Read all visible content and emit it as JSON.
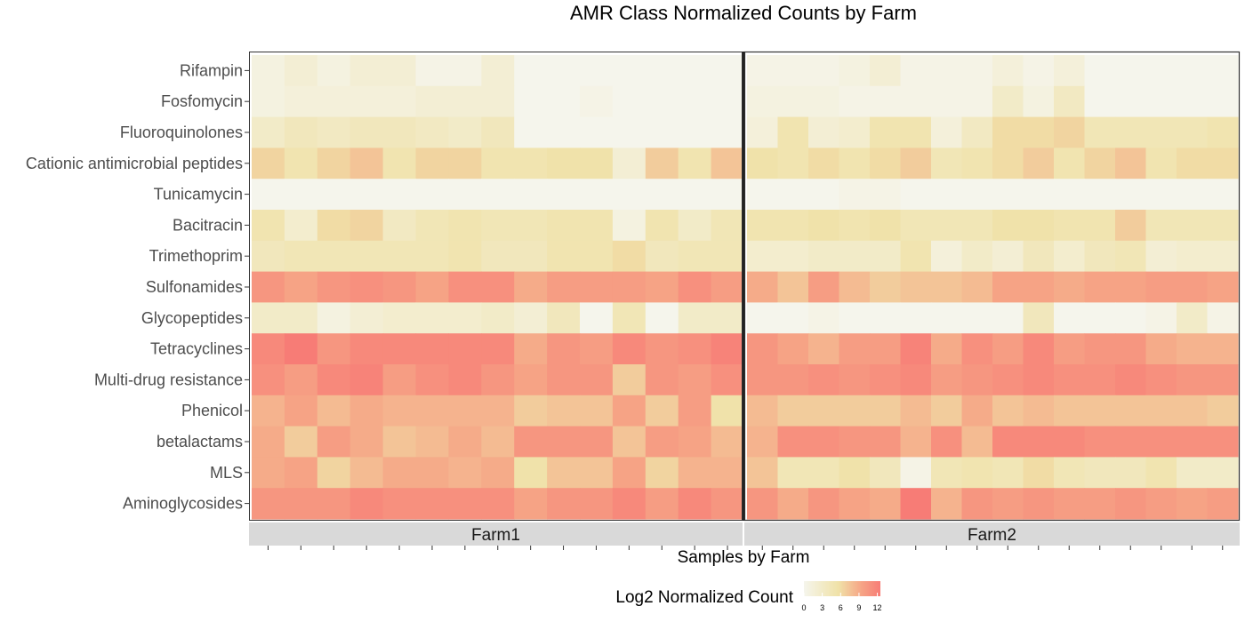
{
  "chart_data": {
    "type": "heatmap",
    "title": "AMR Class Normalized Counts by Farm",
    "xlabel": "Samples by Farm",
    "ylabel": "",
    "legend": {
      "title": "Log2 Normalized Count",
      "ticks": [
        0,
        3,
        6,
        9,
        12
      ],
      "range": [
        0,
        12.5
      ],
      "colors": [
        "#f5f5ec",
        "#f0e2a8",
        "#f6a586",
        "#f77c76"
      ],
      "placement": "bottom"
    },
    "rows": [
      "Rifampin",
      "Fosfomycin",
      "Fluoroquinolones",
      "Cationic antimicrobial peptides",
      "Tunicamycin",
      "Bacitracin",
      "Trimethoprim",
      "Sulfonamides",
      "Glycopeptides",
      "Tetracyclines",
      "Multi-drug resistance",
      "Phenicol",
      "betalactams",
      "MLS",
      "Aminoglycosides"
    ],
    "facets": [
      {
        "name": "Farm1",
        "values": [
          [
            1,
            2,
            1,
            2,
            2,
            0.5,
            0.5,
            2,
            0,
            0,
            0,
            0,
            0,
            0,
            0
          ],
          [
            1,
            1.5,
            1.5,
            1.5,
            1.5,
            2,
            2,
            2,
            0,
            0,
            0.5,
            0,
            0,
            0,
            0
          ],
          [
            3,
            4,
            3.5,
            4,
            4,
            3.5,
            3,
            4,
            0,
            0,
            0,
            0,
            0,
            0,
            0
          ],
          [
            6.5,
            5,
            6.5,
            7.5,
            5,
            6.5,
            6.5,
            5,
            5,
            5.5,
            5.5,
            2,
            7,
            5,
            7.5
          ],
          [
            0,
            0,
            0,
            0,
            0,
            0,
            0,
            0,
            0,
            0,
            0,
            0,
            0,
            0,
            0
          ],
          [
            5,
            2.5,
            6,
            6.5,
            3.5,
            4.5,
            5,
            4.5,
            4.5,
            5,
            5,
            1,
            5,
            3,
            4.5
          ],
          [
            4,
            4.5,
            4.5,
            4.5,
            4.5,
            4.5,
            5,
            4,
            4,
            5,
            5,
            6,
            4,
            4.5,
            4.5
          ],
          [
            10.5,
            9.5,
            10.5,
            11,
            10.5,
            9.5,
            11,
            11,
            9,
            10,
            10,
            10,
            9.5,
            11,
            10
          ],
          [
            3,
            3,
            1,
            2,
            2.5,
            2.5,
            2.5,
            3,
            2,
            4,
            0,
            4.5,
            0,
            3,
            3
          ],
          [
            11.5,
            12.5,
            10.5,
            11.5,
            11.5,
            11.5,
            11.5,
            11.5,
            9,
            10.5,
            10,
            11.5,
            10.5,
            11,
            12
          ],
          [
            11,
            10,
            11.5,
            12,
            10,
            11,
            11.5,
            10.5,
            9.5,
            10.5,
            10.5,
            7,
            10.5,
            10,
            11
          ],
          [
            8.5,
            9.5,
            8,
            9,
            8.5,
            8.5,
            8.5,
            8.5,
            7,
            7.5,
            7.5,
            9.5,
            7,
            10,
            5.5
          ],
          [
            9,
            7,
            10,
            9,
            7.5,
            8,
            9,
            8,
            10.5,
            10.5,
            10.5,
            7.5,
            10,
            9.5,
            8
          ],
          [
            9,
            9.5,
            6.5,
            8,
            9,
            9,
            8.5,
            9,
            5.5,
            7.5,
            7.5,
            9.5,
            6.5,
            8.5,
            8.5
          ],
          [
            10.5,
            10.5,
            10.5,
            11.5,
            11,
            11,
            11,
            11,
            9.5,
            10.5,
            10.5,
            11.5,
            10,
            11.5,
            10.5
          ]
        ]
      },
      {
        "name": "Farm2",
        "values": [
          [
            0.5,
            0.5,
            0.5,
            1,
            2,
            0.5,
            0.5,
            0.5,
            1.5,
            0.5,
            1.5,
            0,
            0,
            0,
            0,
            0
          ],
          [
            1,
            1,
            1,
            0.5,
            0.5,
            0.5,
            0.5,
            0.5,
            3,
            1,
            3.5,
            0,
            0,
            0,
            0,
            0
          ],
          [
            1.5,
            5,
            2,
            2.5,
            5,
            5,
            1.5,
            3.5,
            6,
            6,
            6.5,
            4.5,
            4.5,
            4.5,
            4.5,
            5
          ],
          [
            5.5,
            5,
            6,
            5,
            6,
            7,
            4.5,
            5,
            6,
            7,
            5,
            6.5,
            7.5,
            5,
            6,
            6
          ],
          [
            0,
            0,
            0,
            0.5,
            0.5,
            0,
            0,
            0,
            0,
            0,
            0,
            0,
            0,
            0,
            0,
            0
          ],
          [
            5,
            5,
            5.5,
            5,
            5.5,
            4.5,
            4.5,
            4.5,
            5.5,
            5.5,
            5,
            5,
            7,
            4.5,
            4.5,
            4.5
          ],
          [
            2.5,
            2.5,
            3,
            3,
            3,
            5,
            1.5,
            3,
            2,
            4,
            2.5,
            4,
            4.5,
            2,
            2.5,
            2.5
          ],
          [
            9,
            7.5,
            10,
            8,
            7,
            7.5,
            7.5,
            8,
            9.5,
            9.5,
            9,
            9.5,
            9.5,
            10,
            10,
            9.5
          ],
          [
            0,
            0,
            0.5,
            0,
            0,
            0,
            0,
            0,
            0,
            4,
            0,
            0,
            0,
            0.5,
            3,
            0.5
          ],
          [
            10.5,
            9.5,
            8.5,
            10,
            10,
            12,
            9,
            11,
            10,
            11.5,
            10,
            10.5,
            10.5,
            9,
            8.5,
            8.5
          ],
          [
            10.5,
            10.5,
            11,
            10.5,
            11,
            11.5,
            10,
            10.5,
            11,
            11.5,
            11,
            11,
            11.5,
            11,
            10.5,
            10.5
          ],
          [
            8,
            7,
            7,
            7,
            7,
            8,
            7,
            9,
            7.5,
            8,
            7.5,
            7.5,
            7.5,
            7.5,
            7.5,
            7
          ],
          [
            8.5,
            11,
            11,
            10.5,
            10.5,
            8.5,
            11,
            8,
            11.5,
            11.5,
            11.5,
            11,
            11,
            11,
            11,
            11
          ],
          [
            7.5,
            4.5,
            4.5,
            5.5,
            4,
            0.5,
            4.5,
            5,
            4.5,
            6,
            4.5,
            4,
            4,
            5,
            3,
            3
          ],
          [
            10.5,
            9,
            10.5,
            9.5,
            9,
            12.5,
            8.5,
            10.5,
            10,
            10.5,
            10,
            10,
            10.5,
            10,
            9.5,
            10
          ]
        ]
      }
    ]
  }
}
